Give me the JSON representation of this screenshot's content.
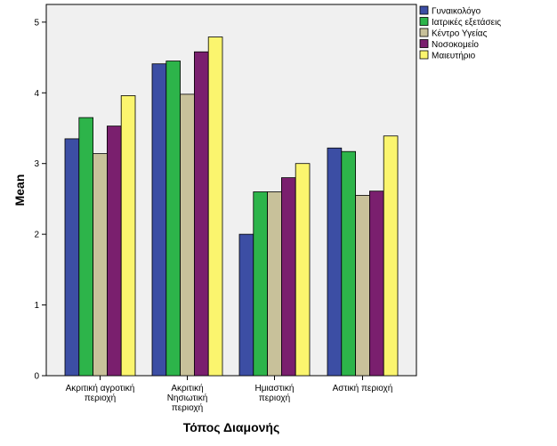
{
  "chart_data": {
    "type": "bar",
    "xlabel": "Τόπος Διαμονής",
    "ylabel": "Mean",
    "ylim": [
      0,
      5.25
    ],
    "yticks": [
      0,
      1,
      2,
      3,
      4,
      5
    ],
    "grid": false,
    "legend_position": "top-right",
    "categories": [
      [
        "Ακριτική αγροτική",
        "περιοχή"
      ],
      [
        "Ακριτική",
        "Νησιωτική",
        "περιοχή"
      ],
      [
        "Ημιαστική",
        "περιοχή"
      ],
      [
        "Αστική περιοχή"
      ]
    ],
    "series": [
      {
        "name": "Γυναικολόγο",
        "color": "#3c4ea4",
        "values": [
          3.35,
          4.41,
          2.0,
          3.22
        ]
      },
      {
        "name": "Ιατρικές εξετάσεις",
        "color": "#2db44a",
        "values": [
          3.65,
          4.45,
          2.6,
          3.17
        ]
      },
      {
        "name": "Κέντρο Υγείας",
        "color": "#c8c19a",
        "values": [
          3.14,
          3.98,
          2.6,
          2.55
        ]
      },
      {
        "name": "Νοσοκομείο",
        "color": "#7a1f6e",
        "values": [
          3.53,
          4.58,
          2.8,
          2.61
        ]
      },
      {
        "name": "Μαιευτήριο",
        "color": "#fbf56e",
        "values": [
          3.96,
          4.79,
          3.0,
          3.39
        ]
      }
    ]
  },
  "style": {
    "plot_background": "#f0f0f0",
    "bar_outline": "#000000"
  }
}
